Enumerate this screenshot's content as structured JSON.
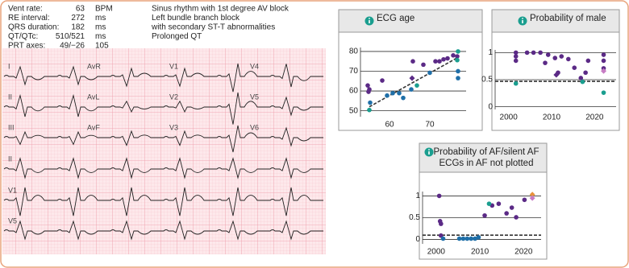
{
  "measurements": [
    {
      "label": "Vent rate:",
      "value": "63",
      "unit": "BPM"
    },
    {
      "label": "RE interval:",
      "value": "272",
      "unit": "ms"
    },
    {
      "label": "QRS duration:",
      "value": "182",
      "unit": "ms"
    },
    {
      "label": "QT/QTc:",
      "value": "510/521",
      "unit": "ms"
    },
    {
      "label": "PRT axes:",
      "value": "49/−26",
      "unit": "105"
    }
  ],
  "interpretation": [
    "Sinus rhythm with 1st degree AV block",
    "Left bundle branch block",
    "with secondary ST-T abnormalities",
    "Prolonged QT"
  ],
  "leads": [
    [
      "I",
      "AvR",
      "V1",
      "V4"
    ],
    [
      "II",
      "AvL",
      "V2",
      "V5"
    ],
    [
      "III",
      "AvF",
      "V3",
      "V6"
    ],
    [
      "II"
    ],
    [
      "V1"
    ],
    [
      "V5"
    ]
  ],
  "charts": [
    {
      "type": "scatter",
      "title": [
        "ECG age"
      ],
      "xlim": [
        54,
        79
      ],
      "ylim": [
        47,
        82
      ],
      "xticks": [
        60,
        70
      ],
      "yticks": [
        50,
        60,
        70,
        80
      ],
      "fit": {
        "x": [
          55,
          77
        ],
        "y": [
          52,
          77
        ]
      },
      "series": [
        {
          "color": "#5b2a86",
          "marker": "circle",
          "x": [
            54.6,
            54.8,
            55,
            58.2,
            65.8,
            68.4,
            71.4,
            72.4,
            73.4,
            74.4,
            75.8,
            76.8
          ],
          "y": [
            62.8,
            59.6,
            60.8,
            65.3,
            75,
            73.3,
            75,
            75,
            76,
            76.5,
            78,
            77.5
          ]
        },
        {
          "color": "#5b2a86",
          "marker": "diamond",
          "x": [
            65.6
          ],
          "y": [
            66.5
          ]
        },
        {
          "color": "#1f6fa8",
          "marker": "circle",
          "x": [
            55.2,
            59.4,
            60.8,
            62.4,
            63.4,
            65.4,
            70,
            77,
            77
          ],
          "y": [
            54.1,
            57.7,
            58.9,
            58.9,
            56.5,
            60.8,
            69.2,
            70,
            66.5
          ]
        },
        {
          "color": "#1a9e8f",
          "marker": "circle",
          "x": [
            55,
            77,
            76.8,
            66.8
          ],
          "y": [
            50.4,
            80,
            75.6,
            62.8
          ]
        }
      ]
    },
    {
      "type": "scatter",
      "title": [
        "Probability of male"
      ],
      "xlim": [
        1998,
        2025
      ],
      "ylim": [
        -0.05,
        1.05
      ],
      "xticks": [
        2000,
        2010,
        2020
      ],
      "yticks": [
        0,
        0.5,
        1
      ],
      "refline": 0.47,
      "series": [
        {
          "color": "#5b2a86",
          "marker": "circle",
          "x": [
            2001.7,
            2001.7,
            2001.7,
            2004.3,
            2005.8,
            2007.4,
            2008.5,
            2009.2,
            2010.8,
            2011.5,
            2012.3,
            2013.9,
            2015.3,
            2016.8,
            2017.9,
            2018.5,
            2022.1,
            2022.1,
            2022.1
          ],
          "y": [
            1,
            0.93,
            0.85,
            1,
            1,
            1,
            0.81,
            0.96,
            0.9,
            0.63,
            0.93,
            0.88,
            0.72,
            0.53,
            0.63,
            0.85,
            0.85,
            0.71,
            0.96
          ]
        },
        {
          "color": "#5b2a86",
          "marker": "diamond",
          "x": [
            2011.1
          ],
          "y": [
            0.59
          ]
        },
        {
          "color": "#c77cc4",
          "marker": "diamond",
          "x": [
            2022.1
          ],
          "y": [
            0.66
          ]
        },
        {
          "color": "#1a9e8f",
          "marker": "circle",
          "x": [
            2001.7,
            2017.2,
            2022.1
          ],
          "y": [
            0.43,
            0.46,
            0.26
          ]
        }
      ]
    },
    {
      "type": "scatter",
      "title": [
        "Probability of AF/silent AF",
        "ECGs in AF not plotted"
      ],
      "xlim": [
        1998,
        2024
      ],
      "ylim": [
        -0.1,
        1.1
      ],
      "xticks": [
        2000,
        2010,
        2020
      ],
      "yticks": [
        0,
        0.5,
        1
      ],
      "refline": 0.1,
      "series": [
        {
          "color": "#5b2a86",
          "marker": "circle",
          "x": [
            2000.7,
            2000.9,
            2001.1,
            2001.1,
            2011.1,
            2012.8,
            2014.3,
            2016.1,
            2017.3,
            2018.3,
            2020.2
          ],
          "y": [
            1,
            0.42,
            0.36,
            0.09,
            0.55,
            0.78,
            0.82,
            0.6,
            0.73,
            0.51,
            0.91
          ]
        },
        {
          "color": "#1a9e8f",
          "marker": "circle",
          "x": [
            2012.1
          ],
          "y": [
            0.82
          ]
        },
        {
          "color": "#1f6fa8",
          "marker": "circle",
          "x": [
            2001.6,
            2005.3,
            2006.2,
            2007.1,
            2008,
            2008.9,
            2009.7
          ],
          "y": [
            0.02,
            0.02,
            0.02,
            0.02,
            0.02,
            0.02,
            0.05
          ]
        },
        {
          "color": "#e8923a",
          "marker": "diamond",
          "x": [
            2022
          ],
          "y": [
            1.03
          ]
        },
        {
          "color": "#c77cc4",
          "marker": "diamond",
          "x": [
            2022
          ],
          "y": [
            0.95
          ]
        }
      ]
    }
  ]
}
